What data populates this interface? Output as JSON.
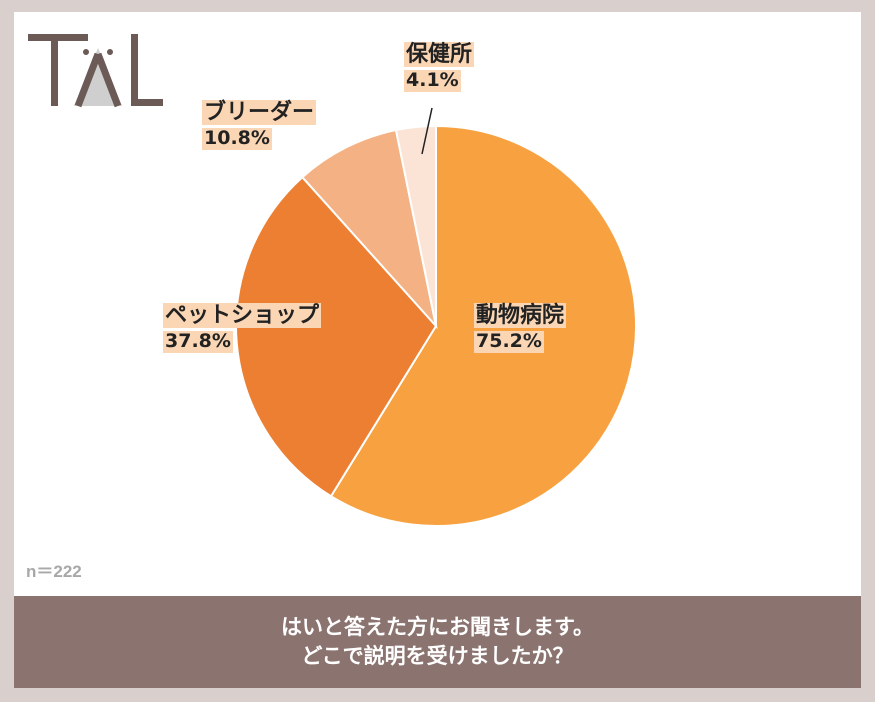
{
  "logo": {
    "text": "TAL",
    "color": "#6b5a56"
  },
  "chart_data": {
    "type": "pie",
    "start_angle_deg": 0,
    "direction": "clockwise",
    "slices": [
      {
        "label": "動物病院",
        "pct_label": "75.2%",
        "value": 75.2,
        "color": "#f7a140"
      },
      {
        "label": "ペットショップ",
        "pct_label": "37.8%",
        "value": 37.8,
        "color": "#ec7f32"
      },
      {
        "label": "ブリーダー",
        "pct_label": "10.8%",
        "value": 10.8,
        "color": "#f4b183"
      },
      {
        "label": "保健所",
        "pct_label": "4.1%",
        "value": 4.1,
        "color": "#fbe4d5"
      }
    ],
    "sample_size": "n＝222"
  },
  "question": {
    "line1": "はいと答えた方にお聞きします。",
    "line2": "どこで説明を受けましたか？"
  }
}
